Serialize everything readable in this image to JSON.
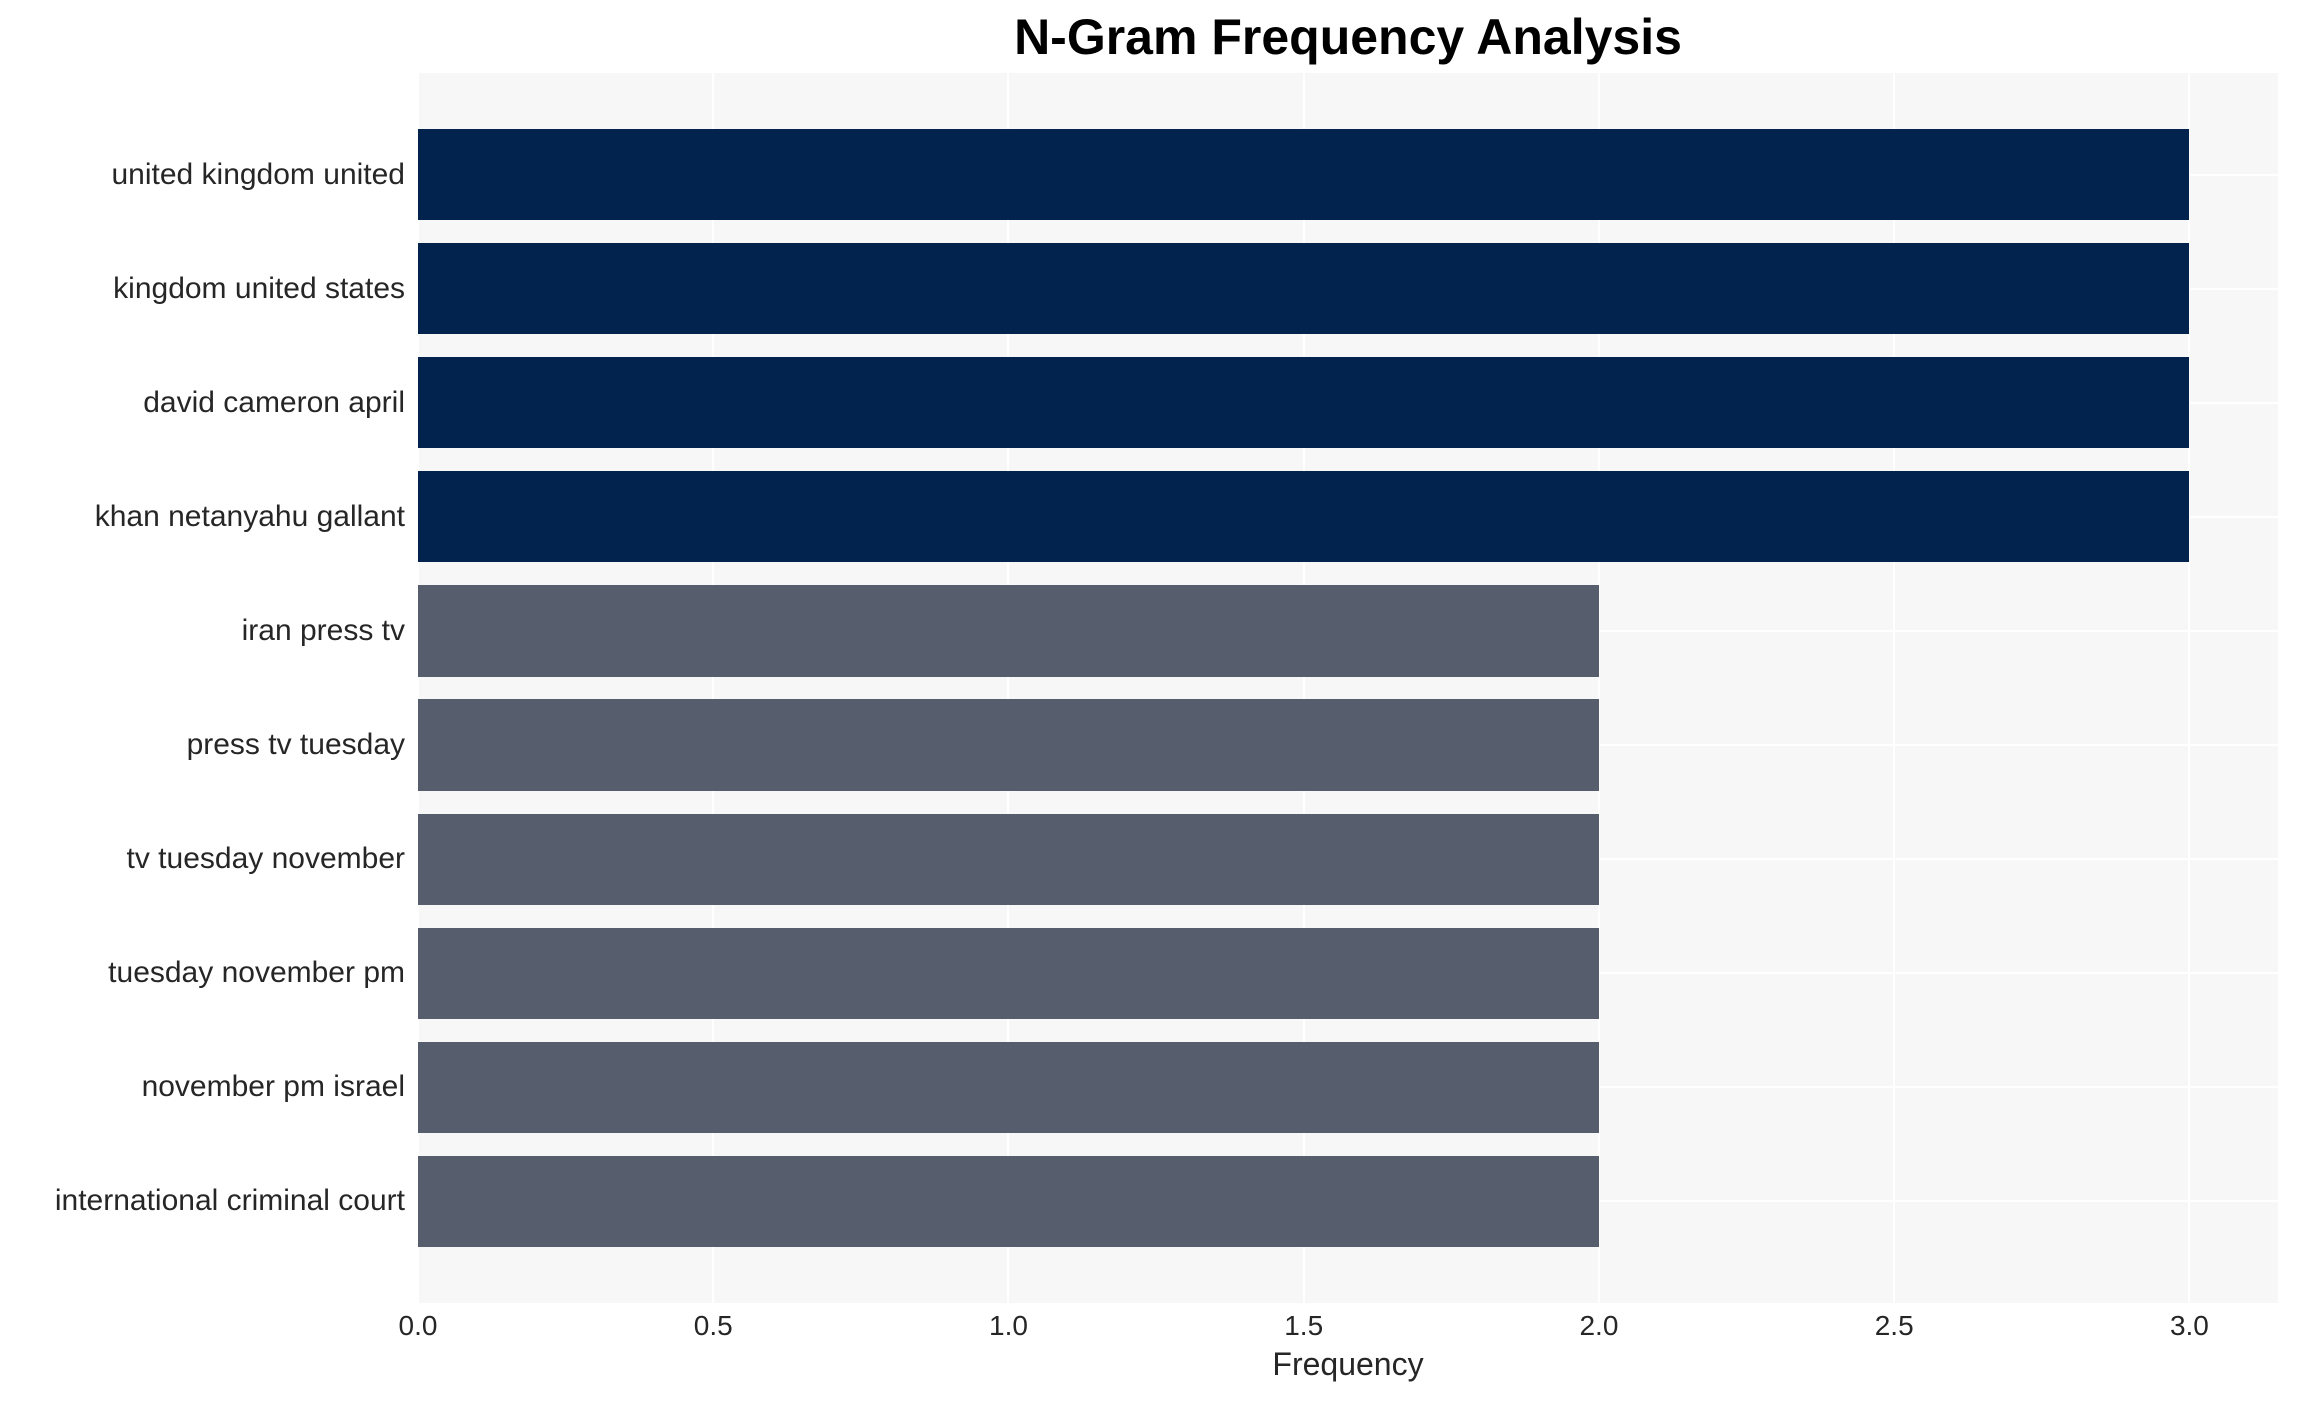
{
  "chart_data": {
    "type": "bar",
    "orientation": "horizontal",
    "title": "N-Gram Frequency Analysis",
    "xlabel": "Frequency",
    "ylabel": "",
    "categories": [
      "united kingdom united",
      "kingdom united states",
      "david cameron april",
      "khan netanyahu gallant",
      "iran press tv",
      "press tv tuesday",
      "tv tuesday november",
      "tuesday november pm",
      "november pm israel",
      "international criminal court"
    ],
    "values": [
      3,
      3,
      3,
      3,
      2,
      2,
      2,
      2,
      2,
      2
    ],
    "bar_colors": [
      "#02234d",
      "#02234d",
      "#02234d",
      "#02234d",
      "#565d6d",
      "#565d6d",
      "#565d6d",
      "#565d6d",
      "#565d6d",
      "#565d6d"
    ],
    "xlim": [
      0,
      3.15
    ],
    "xticks": [
      0,
      0.5,
      1,
      1.5,
      2,
      2.5,
      3
    ],
    "xtick_labels": [
      "0.0",
      "0.5",
      "1.0",
      "1.5",
      "2.0",
      "2.5",
      "3.0"
    ],
    "grid": true,
    "legend": false,
    "plot_background": "#f7f7f7",
    "gridline_color": "#ffffff",
    "text_color": "#262626",
    "title_color": "#000000"
  }
}
